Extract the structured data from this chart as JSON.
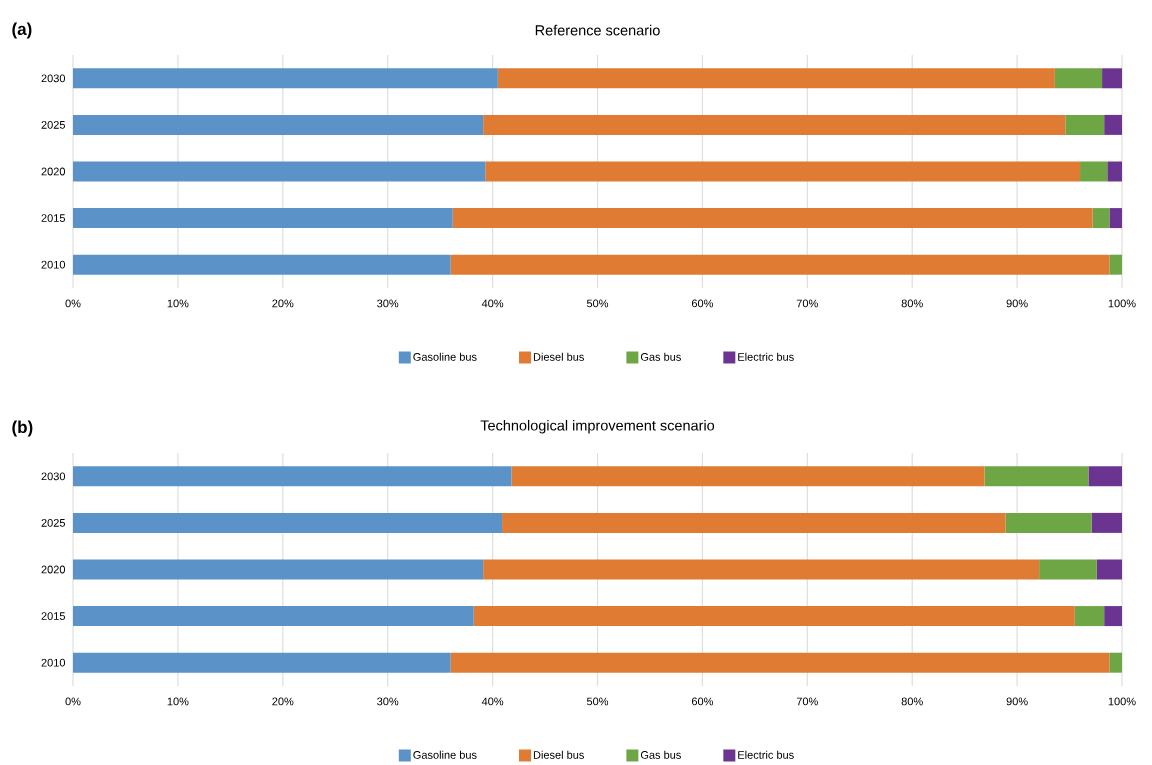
{
  "chart_data": [
    {
      "type": "bar",
      "orientation": "horizontal",
      "stacked": true,
      "title": "Reference scenario",
      "annotations": [
        "(a)"
      ],
      "categories": [
        "2030",
        "2025",
        "2020",
        "2015",
        "2010"
      ],
      "series": [
        {
          "name": "Gasoline bus",
          "color": "#5b93c8",
          "values": [
            40.5,
            39.1,
            39.3,
            36.2,
            36.0
          ]
        },
        {
          "name": "Diesel bus",
          "color": "#e07b33",
          "values": [
            53.1,
            55.5,
            56.7,
            61.0,
            62.8
          ]
        },
        {
          "name": "Gas bus",
          "color": "#6ea646",
          "values": [
            4.5,
            3.7,
            2.6,
            1.6,
            1.2
          ]
        },
        {
          "name": "Electric bus",
          "color": "#6b3491",
          "values": [
            1.9,
            1.7,
            1.4,
            1.2,
            0
          ]
        }
      ],
      "xlim": [
        0,
        100
      ],
      "xticks": [
        {
          "value": 0,
          "label": "0%"
        },
        {
          "value": 10,
          "label": "10%"
        },
        {
          "value": 20,
          "label": "20%"
        },
        {
          "value": 30,
          "label": "30%"
        },
        {
          "value": 40,
          "label": "40%"
        },
        {
          "value": 50,
          "label": "50%"
        },
        {
          "value": 60,
          "label": "60%"
        },
        {
          "value": 70,
          "label": "70%"
        },
        {
          "value": 80,
          "label": "80%"
        },
        {
          "value": 90,
          "label": "90%"
        },
        {
          "value": 100,
          "label": "100%"
        }
      ],
      "grid": "x",
      "legend": "bottom"
    },
    {
      "type": "bar",
      "orientation": "horizontal",
      "stacked": true,
      "title": "Technological improvement scenario",
      "annotations": [
        "(b)"
      ],
      "categories": [
        "2030",
        "2025",
        "2020",
        "2015",
        "2010"
      ],
      "series": [
        {
          "name": "Gasoline bus",
          "color": "#5b93c8",
          "values": [
            41.8,
            40.9,
            39.1,
            38.2,
            36.0
          ]
        },
        {
          "name": "Diesel bus",
          "color": "#e07b33",
          "values": [
            45.1,
            48.0,
            53.0,
            57.3,
            62.8
          ]
        },
        {
          "name": "Gas bus",
          "color": "#6ea646",
          "values": [
            9.9,
            8.2,
            5.5,
            2.8,
            1.2
          ]
        },
        {
          "name": "Electric bus",
          "color": "#6b3491",
          "values": [
            3.2,
            2.9,
            2.4,
            1.7,
            0
          ]
        }
      ],
      "xlim": [
        0,
        100
      ],
      "xticks": [
        {
          "value": 0,
          "label": "0%"
        },
        {
          "value": 10,
          "label": "10%"
        },
        {
          "value": 20,
          "label": "20%"
        },
        {
          "value": 30,
          "label": "30%"
        },
        {
          "value": 40,
          "label": "40%"
        },
        {
          "value": 50,
          "label": "50%"
        },
        {
          "value": 60,
          "label": "60%"
        },
        {
          "value": 70,
          "label": "70%"
        },
        {
          "value": 80,
          "label": "80%"
        },
        {
          "value": 90,
          "label": "90%"
        },
        {
          "value": 100,
          "label": "100%"
        }
      ],
      "grid": "x",
      "legend": "bottom"
    }
  ]
}
